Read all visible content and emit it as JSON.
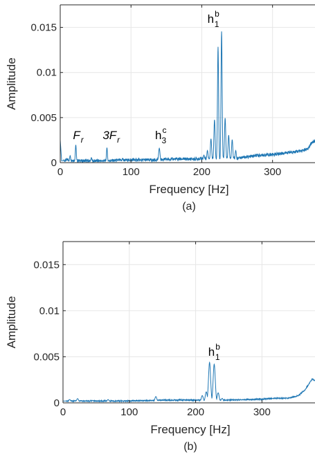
{
  "chart_data": [
    {
      "type": "line",
      "caption": "(a)",
      "xlabel": "Frequency [Hz]",
      "ylabel": "Amplitude",
      "xlim": [
        0,
        360
      ],
      "ylim": [
        0,
        0.0175
      ],
      "xticks": [
        0,
        100,
        200,
        300
      ],
      "xtick_labels": [
        "0",
        "100",
        "200",
        "300"
      ],
      "yticks": [
        0,
        0.005,
        0.01,
        0.015
      ],
      "ytick_labels": [
        "0",
        "0.005",
        "0.01",
        "0.015"
      ],
      "grid": true,
      "line_color": "#1f77b4",
      "baseline": [
        [
          0,
          0.0025
        ],
        [
          2,
          0.0002
        ],
        [
          10,
          0.0003
        ],
        [
          30,
          0.0002
        ],
        [
          60,
          0.0002
        ],
        [
          100,
          0.0003
        ],
        [
          130,
          0.0003
        ],
        [
          160,
          0.0004
        ],
        [
          190,
          0.0004
        ],
        [
          205,
          0.0005
        ],
        [
          250,
          0.0005
        ],
        [
          280,
          0.0008
        ],
        [
          300,
          0.0009
        ],
        [
          320,
          0.0011
        ],
        [
          340,
          0.0013
        ],
        [
          350,
          0.0015
        ],
        [
          356,
          0.0023
        ],
        [
          360,
          0.0024
        ]
      ],
      "peaks": [
        {
          "f": 14,
          "a": 0.0007,
          "w": 0.7
        },
        {
          "f": 22,
          "a": 0.0019,
          "w": 0.7
        },
        {
          "f": 44,
          "a": 0.0005,
          "w": 0.7
        },
        {
          "f": 66,
          "a": 0.0016,
          "w": 0.7
        },
        {
          "f": 88,
          "a": 0.0004,
          "w": 0.7
        },
        {
          "f": 140,
          "a": 0.0015,
          "w": 1.0
        },
        {
          "f": 203,
          "a": 0.0007,
          "w": 0.9
        },
        {
          "f": 208,
          "a": 0.0012,
          "w": 0.9
        },
        {
          "f": 213,
          "a": 0.0025,
          "w": 0.9
        },
        {
          "f": 218,
          "a": 0.0046,
          "w": 0.9
        },
        {
          "f": 223,
          "a": 0.0127,
          "w": 0.8
        },
        {
          "f": 228,
          "a": 0.0144,
          "w": 0.8
        },
        {
          "f": 233,
          "a": 0.0048,
          "w": 0.9
        },
        {
          "f": 238,
          "a": 0.0029,
          "w": 0.9
        },
        {
          "f": 243,
          "a": 0.0024,
          "w": 0.9
        },
        {
          "f": 248,
          "a": 0.0012,
          "w": 0.9
        },
        {
          "f": 253,
          "a": 0.0005,
          "w": 0.9
        }
      ],
      "annotations": [
        {
          "base": "F",
          "sub": "r",
          "sup": "",
          "italic": true,
          "color": "#000000",
          "f": 18,
          "a": 0.0026
        },
        {
          "base": "3F",
          "sub": "r",
          "sup": "",
          "italic": true,
          "color": "#000000",
          "f": 60,
          "a": 0.0026
        },
        {
          "base": "h",
          "sub": "3",
          "sup": "c",
          "italic": false,
          "color": "#c000c0",
          "f": 134,
          "a": 0.0026
        },
        {
          "base": "h",
          "sub": "1",
          "sup": "b",
          "italic": false,
          "color": "#000000",
          "f": 208,
          "a": 0.0155
        }
      ]
    },
    {
      "type": "line",
      "caption": "(b)",
      "xlabel": "Frequency [Hz]",
      "ylabel": "Amplitude",
      "xlim": [
        0,
        380
      ],
      "ylim": [
        0,
        0.0175
      ],
      "xticks": [
        0,
        100,
        200,
        300
      ],
      "xtick_labels": [
        "0",
        "100",
        "200",
        "300"
      ],
      "yticks": [
        0,
        0.005,
        0.01,
        0.015
      ],
      "ytick_labels": [
        "0",
        "0.005",
        "0.01",
        "0.015"
      ],
      "grid": true,
      "line_color": "#1f77b4",
      "baseline": [
        [
          0,
          0.0002
        ],
        [
          20,
          0.0002
        ],
        [
          60,
          0.0002
        ],
        [
          100,
          0.0002
        ],
        [
          150,
          0.0003
        ],
        [
          200,
          0.0003
        ],
        [
          250,
          0.0003
        ],
        [
          300,
          0.0004
        ],
        [
          320,
          0.0005
        ],
        [
          340,
          0.0005
        ],
        [
          355,
          0.0008
        ],
        [
          365,
          0.0014
        ],
        [
          372,
          0.0022
        ],
        [
          376,
          0.0026
        ],
        [
          380,
          0.0024
        ]
      ],
      "peaks": [
        {
          "f": 10,
          "a": 0.0003,
          "w": 1.5
        },
        {
          "f": 22,
          "a": 0.0004,
          "w": 1.5
        },
        {
          "f": 45,
          "a": 0.0002,
          "w": 1.5
        },
        {
          "f": 68,
          "a": 0.0003,
          "w": 1.5
        },
        {
          "f": 140,
          "a": 0.0006,
          "w": 1.5
        },
        {
          "f": 210,
          "a": 0.0007,
          "w": 1.5
        },
        {
          "f": 216,
          "a": 0.0011,
          "w": 1.5
        },
        {
          "f": 221,
          "a": 0.0043,
          "w": 1.6
        },
        {
          "f": 228,
          "a": 0.0041,
          "w": 1.6
        },
        {
          "f": 234,
          "a": 0.001,
          "w": 1.5
        },
        {
          "f": 240,
          "a": 0.0004,
          "w": 1.5
        }
      ],
      "annotations": [
        {
          "base": "h",
          "sub": "1",
          "sup": "b",
          "italic": false,
          "color": "#000000",
          "f": 219,
          "a": 0.0051
        }
      ]
    }
  ]
}
